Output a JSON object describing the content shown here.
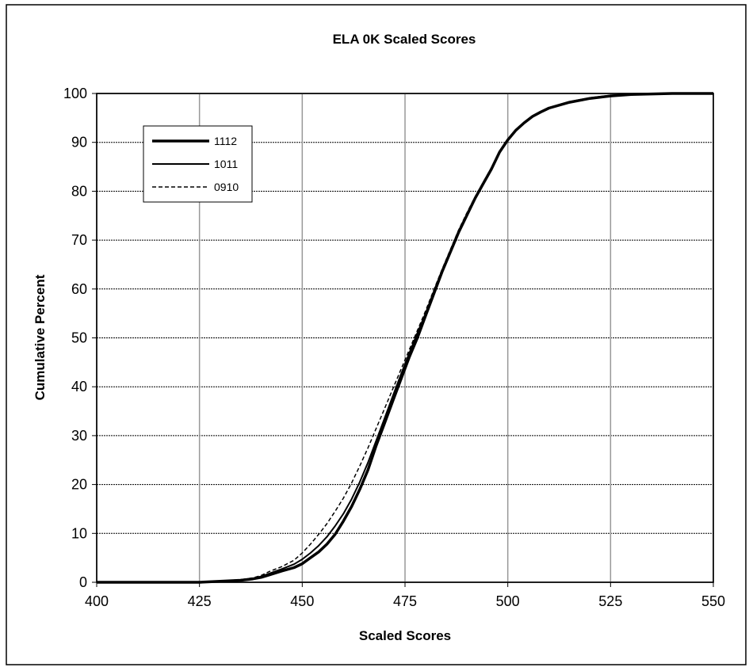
{
  "chart_data": {
    "type": "line",
    "title": "ELA 0K Scaled Scores",
    "xlabel": "Scaled Scores",
    "ylabel": "Cumulative Percent",
    "xlim": [
      400,
      550
    ],
    "ylim": [
      0,
      100
    ],
    "xticks": [
      "400",
      "425",
      "450",
      "475",
      "500",
      "525",
      "550"
    ],
    "yticks": [
      "0",
      "10",
      "20",
      "30",
      "40",
      "50",
      "60",
      "70",
      "80",
      "90",
      "100"
    ],
    "grid": true,
    "legend_position": "top-left",
    "series": [
      {
        "name": "1112",
        "style": "thick-solid",
        "x": [
          400,
          425,
          430,
          435,
          438,
          440,
          442,
          445,
          448,
          450,
          452,
          454,
          456,
          458,
          460,
          462,
          464,
          466,
          468,
          470,
          472,
          474,
          476,
          478,
          480,
          482,
          484,
          486,
          488,
          490,
          492,
          494,
          496,
          498,
          500,
          502,
          504,
          506,
          508,
          510,
          515,
          520,
          525,
          530,
          540,
          550
        ],
        "y": [
          0,
          0,
          0.2,
          0.4,
          0.7,
          1,
          1.5,
          2.3,
          3,
          3.8,
          5,
          6.2,
          7.8,
          9.8,
          12.5,
          15.5,
          19,
          23,
          28,
          32.5,
          37,
          41.5,
          46,
          50,
          54.5,
          59,
          63.5,
          67.5,
          71.5,
          75,
          78.5,
          81.5,
          84.5,
          88,
          90.5,
          92.5,
          94,
          95.3,
          96.2,
          97,
          98.2,
          99,
          99.5,
          99.8,
          100,
          100
        ]
      },
      {
        "name": "1011",
        "style": "solid",
        "x": [
          400,
          425,
          430,
          435,
          438,
          440,
          442,
          445,
          448,
          450,
          452,
          454,
          456,
          458,
          460,
          462,
          464,
          466,
          468,
          470,
          472,
          474,
          476,
          478,
          480,
          482,
          484,
          486,
          488,
          490,
          492,
          494,
          496,
          498,
          500,
          502,
          504,
          506,
          508,
          510,
          515,
          520,
          525,
          530,
          540,
          550
        ],
        "y": [
          0,
          0,
          0.2,
          0.5,
          0.8,
          1.2,
          1.8,
          2.7,
          3.7,
          4.7,
          6,
          7.5,
          9.3,
          11.5,
          14,
          17,
          20.5,
          24.5,
          29,
          33.5,
          38,
          42.5,
          46.8,
          51,
          55,
          59.5,
          63.8,
          67.8,
          71.8,
          75.2,
          78.6,
          81.6,
          84.6,
          88,
          90.6,
          92.6,
          94.1,
          95.4,
          96.3,
          97.1,
          98.3,
          99.1,
          99.6,
          99.9,
          100,
          100
        ]
      },
      {
        "name": "0910",
        "style": "dashed",
        "x": [
          400,
          425,
          430,
          435,
          438,
          440,
          442,
          445,
          448,
          450,
          452,
          454,
          456,
          458,
          460,
          462,
          464,
          466,
          468,
          470,
          472,
          474,
          476,
          478,
          480,
          482,
          484,
          486,
          488,
          490,
          492,
          494,
          496,
          498,
          500,
          502,
          504,
          506,
          508,
          510,
          515,
          520,
          525,
          530,
          540,
          550
        ],
        "y": [
          0,
          0,
          0.2,
          0.5,
          0.9,
          1.4,
          2.2,
          3.2,
          4.5,
          6,
          7.8,
          9.8,
          12,
          14.5,
          17.2,
          20.3,
          23.8,
          27.5,
          31.5,
          35.5,
          39.5,
          43.5,
          47.5,
          51.5,
          55.5,
          59.8,
          64,
          68,
          72,
          75.5,
          78.8,
          81.8,
          84.8,
          88,
          90.6,
          92.6,
          94.1,
          95.4,
          96.3,
          97.1,
          98.3,
          99.1,
          99.6,
          99.9,
          100,
          100
        ]
      }
    ]
  }
}
